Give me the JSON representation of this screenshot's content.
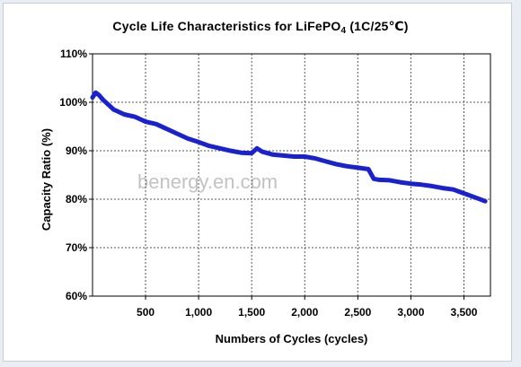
{
  "chart_data": {
    "type": "line",
    "title_main": "Cycle Life Characteristics for LiFePO",
    "title_sub": "4",
    "title_tail": " (1C/25℃)",
    "xlabel": "Numbers of Cycles (cycles)",
    "ylabel": "Capacity Ratio (%)",
    "xlim": [
      0,
      3750
    ],
    "ylim": [
      60,
      110
    ],
    "x_ticks": [
      500,
      1000,
      1500,
      2000,
      2500,
      3000,
      3500
    ],
    "x_tick_labels": [
      "500",
      "1,000",
      "1,500",
      "2,000",
      "2,500",
      "3,000",
      "3,500"
    ],
    "y_ticks": [
      60,
      70,
      80,
      90,
      100,
      110
    ],
    "y_tick_labels": [
      "60%",
      "70%",
      "80%",
      "90%",
      "100%",
      "110%"
    ],
    "grid": true,
    "series": [
      {
        "color": "#1a22d0",
        "x": [
          0,
          30,
          60,
          100,
          150,
          200,
          300,
          400,
          500,
          600,
          700,
          800,
          900,
          1000,
          1100,
          1200,
          1300,
          1400,
          1500,
          1550,
          1600,
          1700,
          1800,
          1900,
          2000,
          2100,
          2200,
          2300,
          2400,
          2500,
          2600,
          2650,
          2700,
          2800,
          2900,
          3000,
          3100,
          3200,
          3300,
          3400,
          3500,
          3600,
          3700
        ],
        "y": [
          101.0,
          102.0,
          101.5,
          100.5,
          99.5,
          98.5,
          97.5,
          97.0,
          96.0,
          95.5,
          94.5,
          93.5,
          92.5,
          91.8,
          91.0,
          90.5,
          90.0,
          89.6,
          89.5,
          90.5,
          89.8,
          89.2,
          89.0,
          88.8,
          88.8,
          88.4,
          87.8,
          87.2,
          86.8,
          86.5,
          86.2,
          84.2,
          84.0,
          83.9,
          83.5,
          83.2,
          83.0,
          82.7,
          82.3,
          82.0,
          81.2,
          80.4,
          79.6
        ]
      }
    ],
    "watermark": "benergy.en.com"
  }
}
